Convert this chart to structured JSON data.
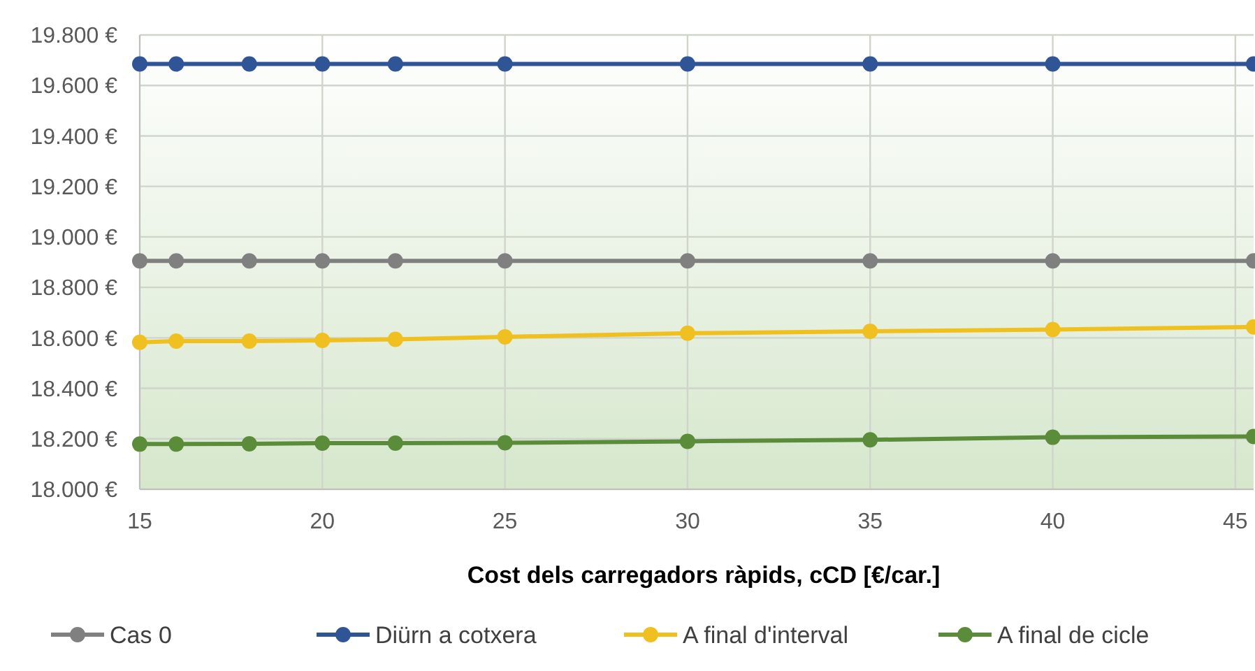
{
  "chart_data": {
    "type": "line",
    "xlabel": "Cost dels carregadors ràpids, cCD [€/car.]",
    "x": [
      15,
      16,
      18,
      20,
      22,
      25,
      30,
      35,
      40,
      45.5
    ],
    "series": [
      {
        "name": "Cas 0",
        "color": "#808080",
        "values": [
          18905,
          18905,
          18905,
          18905,
          18905,
          18905,
          18905,
          18905,
          18905,
          18905
        ]
      },
      {
        "name": "Diürn a cotxera",
        "color": "#2f5597",
        "values": [
          19685,
          19685,
          19685,
          19685,
          19685,
          19685,
          19685,
          19685,
          19685,
          19685
        ]
      },
      {
        "name": "A final d'interval",
        "color": "#f0c020",
        "values": [
          18582,
          18587,
          18587,
          18590,
          18594,
          18604,
          18618,
          18626,
          18633,
          18643
        ]
      },
      {
        "name": "A final de cicle",
        "color": "#5b8c3a",
        "values": [
          18179,
          18179,
          18180,
          18183,
          18183,
          18184,
          18190,
          18196,
          18206,
          18209
        ]
      }
    ],
    "xlim": [
      15,
      45.5
    ],
    "xticks": [
      15,
      20,
      25,
      30,
      35,
      40,
      45
    ],
    "ylim": [
      18000,
      19800
    ],
    "yticks": [
      {
        "value": 18000,
        "label": "18.000 €"
      },
      {
        "value": 18200,
        "label": "18.200 €"
      },
      {
        "value": 18400,
        "label": "18.400 €"
      },
      {
        "value": 18600,
        "label": "18.600 €"
      },
      {
        "value": 18800,
        "label": "18.800 €"
      },
      {
        "value": 19000,
        "label": "19.000 €"
      },
      {
        "value": 19200,
        "label": "19.200 €"
      },
      {
        "value": 19400,
        "label": "19.400 €"
      },
      {
        "value": 19600,
        "label": "19.600 €"
      },
      {
        "value": 19800,
        "label": "19.800 €"
      }
    ],
    "grid": true,
    "legend": "bottom",
    "marker": "circle",
    "line_style": "solid"
  }
}
